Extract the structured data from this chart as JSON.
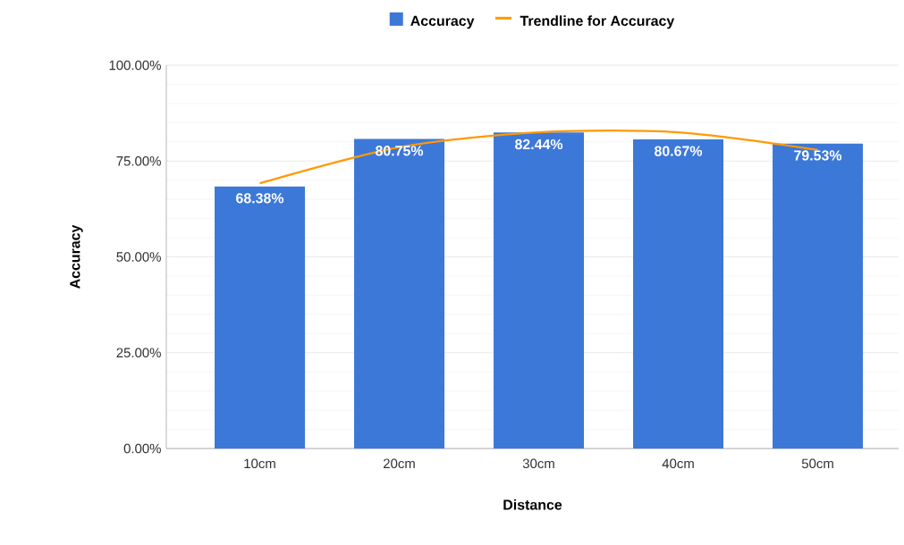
{
  "chart_data": {
    "type": "bar",
    "xlabel": "Distance",
    "ylabel": "Accuracy",
    "categories": [
      "10cm",
      "20cm",
      "30cm",
      "40cm",
      "50cm"
    ],
    "series": [
      {
        "name": "Accuracy",
        "color": "#3c78d8",
        "values": [
          68.38,
          80.75,
          82.44,
          80.67,
          79.53
        ],
        "value_labels": [
          "68.38%",
          "80.75%",
          "82.44%",
          "80.67%",
          "79.53%"
        ]
      },
      {
        "name": "Trendline for Accuracy",
        "type": "line",
        "color": "#ff9900",
        "values": [
          69.2,
          78.6,
          82.5,
          82.5,
          77.9
        ]
      }
    ],
    "ylim": [
      0,
      100
    ],
    "yticks": [
      {
        "value": 0,
        "label": "0.00%"
      },
      {
        "value": 25,
        "label": "25.00%"
      },
      {
        "value": 50,
        "label": "50.00%"
      },
      {
        "value": 75,
        "label": "75.00%"
      },
      {
        "value": 100,
        "label": "100.00%"
      }
    ],
    "grid": "y",
    "legend": "top"
  }
}
